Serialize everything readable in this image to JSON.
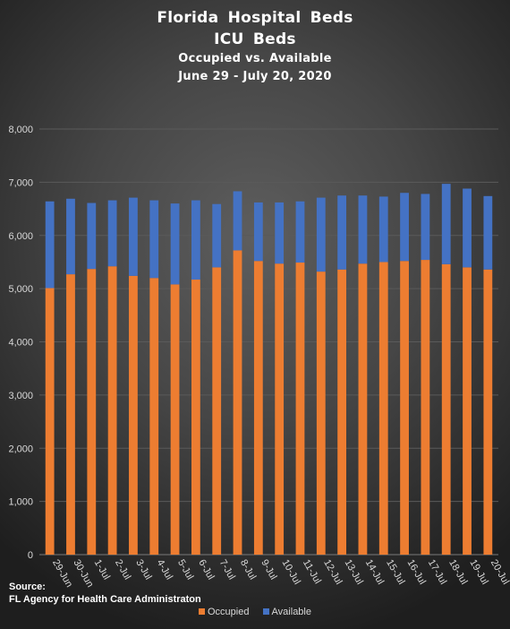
{
  "title_line1": "Florida Hospital Beds",
  "title_line2": "ICU Beds",
  "subtitle_line1": "Occupied vs. Available",
  "subtitle_line2": "June 29 - July 20, 2020",
  "source_label": "Source:",
  "source_text": "FL Agency for Health Care Administraton",
  "colors": {
    "occupied": "#ED7D31",
    "available": "#4472C4",
    "gridline": "#5a5a5a",
    "axis_text": "#d9d9d9"
  },
  "chart_data": {
    "type": "bar",
    "stacked": true,
    "categories": [
      "29-Jun",
      "30-Jun",
      "1-Jul",
      "2-Jul",
      "3-Jul",
      "4-Jul",
      "5-Jul",
      "6-Jul",
      "7-Jul",
      "8-Jul",
      "9-Jul",
      "10-Jul",
      "11-Jul",
      "12-Jul",
      "13-Jul",
      "14-Jul",
      "15-Jul",
      "16-Jul",
      "17-Jul",
      "18-Jul",
      "19-Jul",
      "20-Jul"
    ],
    "series": [
      {
        "name": "Occupied",
        "color": "#ED7D31",
        "values": [
          5010,
          5270,
          5370,
          5420,
          5240,
          5200,
          5080,
          5170,
          5400,
          5720,
          5520,
          5470,
          5490,
          5320,
          5360,
          5470,
          5500,
          5520,
          5540,
          5460,
          5400,
          5360
        ]
      },
      {
        "name": "Available",
        "color": "#4472C4",
        "values": [
          1630,
          1420,
          1240,
          1240,
          1470,
          1460,
          1520,
          1490,
          1190,
          1110,
          1100,
          1150,
          1150,
          1390,
          1390,
          1280,
          1230,
          1280,
          1240,
          1510,
          1480,
          1380
        ]
      }
    ],
    "ylim": [
      0,
      8000
    ],
    "yticks": [
      "0",
      "1,000",
      "2,000",
      "3,000",
      "4,000",
      "5,000",
      "6,000",
      "7,000",
      "8,000"
    ],
    "grid": true,
    "legend_position": "bottom"
  }
}
